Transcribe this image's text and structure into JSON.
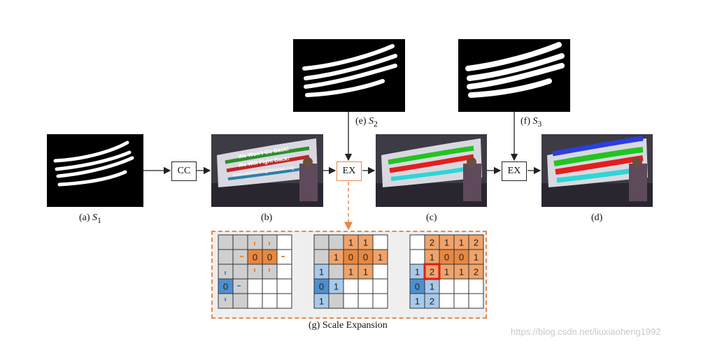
{
  "captions": {
    "a": {
      "prefix": "(a)",
      "symbol": "S",
      "sub": "1"
    },
    "b": "(b)",
    "c": "(c)",
    "d": "(d)",
    "e": {
      "prefix": "(e)",
      "symbol": "S",
      "sub": "2"
    },
    "f": {
      "prefix": "(f)",
      "symbol": "S",
      "sub": "3"
    },
    "g": "(g) Scale Expansion"
  },
  "ops": {
    "cc": "CC",
    "ex1": "EX",
    "ex2": "EX"
  },
  "banner_text": {
    "line1": "We Won't Go Back!",
    "line2": "We Will Fight Back!",
    "line3": "www.womensrightsnews.org"
  },
  "grids": [
    {
      "cells": [
        [
          "",
          "",
          "",
          "",
          ""
        ],
        [
          "",
          "",
          "0",
          "0",
          ""
        ],
        [
          "",
          "",
          "",
          "",
          ""
        ],
        [
          "0",
          "",
          "",
          "",
          ""
        ],
        [
          "",
          "",
          "",
          "",
          ""
        ]
      ]
    },
    {
      "cells": [
        [
          "",
          "",
          "1",
          "1",
          ""
        ],
        [
          "",
          "1",
          "0",
          "0",
          "1"
        ],
        [
          "1",
          "",
          "1",
          "1",
          ""
        ],
        [
          "0",
          "1",
          "",
          "",
          ""
        ],
        [
          "1",
          "",
          "",
          "",
          ""
        ]
      ]
    },
    {
      "cells": [
        [
          "",
          "2",
          "1",
          "1",
          "2"
        ],
        [
          "",
          "1",
          "0",
          "0",
          "1"
        ],
        [
          "1",
          "2",
          "1",
          "1",
          "2"
        ],
        [
          "0",
          "1",
          "",
          "",
          ""
        ],
        [
          "1",
          "2",
          "",
          "",
          ""
        ]
      ]
    }
  ],
  "colors": {
    "orange": "#f0a36a",
    "orange_dark": "#e8873f",
    "blue_dark": "#4f8fd0",
    "blue_light": "#a8c9ea",
    "conflict": "#e01b1b"
  },
  "watermark": "https://blog.csdn.net/liuxiaoheng1992"
}
